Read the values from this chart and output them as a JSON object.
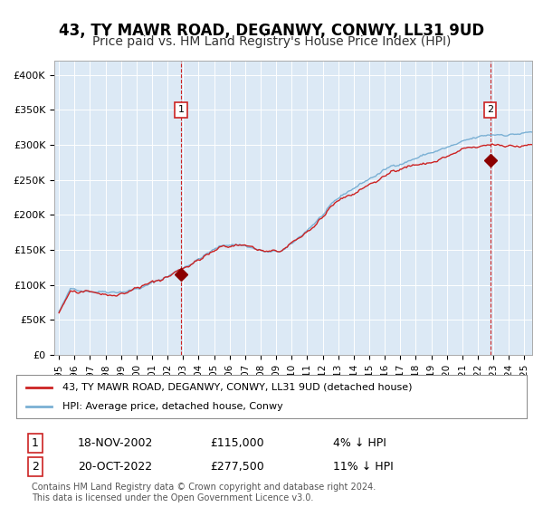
{
  "title": "43, TY MAWR ROAD, DEGANWY, CONWY, LL31 9UD",
  "subtitle": "Price paid vs. HM Land Registry's House Price Index (HPI)",
  "title_fontsize": 12,
  "subtitle_fontsize": 10,
  "bg_color": "#dce9f5",
  "plot_bg_color": "#dce9f5",
  "fig_bg_color": "#ffffff",
  "hpi_color": "#7ab0d4",
  "price_color": "#cc2222",
  "marker_color": "#8b0000",
  "dashed_color": "#cc2222",
  "ylim": [
    0,
    420000
  ],
  "yticks": [
    0,
    50000,
    100000,
    150000,
    200000,
    250000,
    300000,
    350000,
    400000
  ],
  "ytick_labels": [
    "£0",
    "£50K",
    "£100K",
    "£150K",
    "£200K",
    "£250K",
    "£300K",
    "£350K",
    "£400K"
  ],
  "xmin_year": 1995,
  "xmax_year": 2025.5,
  "xtick_years": [
    1995,
    1996,
    1997,
    1998,
    1999,
    2000,
    2001,
    2002,
    2003,
    2004,
    2005,
    2006,
    2007,
    2008,
    2009,
    2010,
    2011,
    2012,
    2013,
    2014,
    2015,
    2016,
    2017,
    2018,
    2019,
    2020,
    2021,
    2022,
    2023,
    2024,
    2025
  ],
  "sale1_date": 2002.88,
  "sale1_price": 115000,
  "sale2_date": 2022.79,
  "sale2_price": 277500,
  "legend_entry1": "43, TY MAWR ROAD, DEGANWY, CONWY, LL31 9UD (detached house)",
  "legend_entry2": "HPI: Average price, detached house, Conwy",
  "table_row1_num": "1",
  "table_row1_date": "18-NOV-2002",
  "table_row1_price": "£115,000",
  "table_row1_hpi": "4% ↓ HPI",
  "table_row2_num": "2",
  "table_row2_date": "20-OCT-2022",
  "table_row2_price": "£277,500",
  "table_row2_hpi": "11% ↓ HPI",
  "footer": "Contains HM Land Registry data © Crown copyright and database right 2024.\nThis data is licensed under the Open Government Licence v3.0."
}
